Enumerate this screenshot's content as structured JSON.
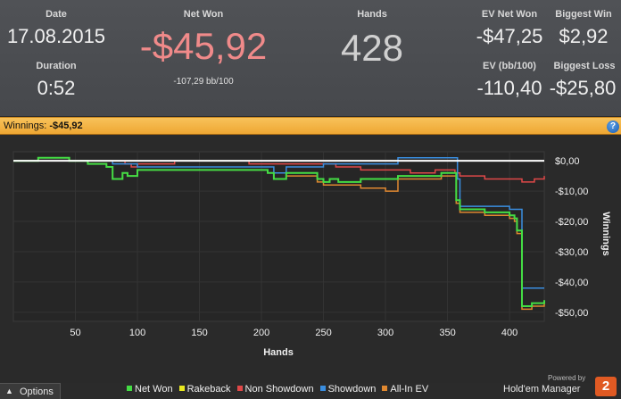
{
  "stats": {
    "date": {
      "label": "Date",
      "value": "17.08.2015"
    },
    "duration": {
      "label": "Duration",
      "value": "0:52"
    },
    "net_won": {
      "label": "Net Won",
      "value": "-$45,92",
      "sub": "-107,29 bb/100"
    },
    "hands": {
      "label": "Hands",
      "value": "428"
    },
    "ev_net_won": {
      "label": "EV Net Won",
      "value": "-$47,25"
    },
    "ev_bb100": {
      "label": "EV (bb/100)",
      "value": "-110,40"
    },
    "biggest_win": {
      "label": "Biggest Win",
      "value": "$2,92"
    },
    "biggest_loss": {
      "label": "Biggest Loss",
      "value": "-$25,80"
    }
  },
  "titlebar": {
    "label": "Winnings:",
    "value": "-$45,92",
    "help_icon": "?"
  },
  "colors": {
    "net_won_value": "#f08a8a",
    "accent_bar": "#f0ab3a"
  },
  "chart_data": {
    "type": "line",
    "xlabel": "Hands",
    "ylabel": "Winnings",
    "xlim": [
      0,
      428
    ],
    "ylim": [
      -53,
      3
    ],
    "x_ticks": [
      50,
      100,
      150,
      200,
      250,
      300,
      350,
      400
    ],
    "x_tick_labels": [
      "50",
      "100",
      "150",
      "200",
      "250",
      "300",
      "350",
      "400"
    ],
    "y_ticks": [
      0,
      -10,
      -20,
      -30,
      -40,
      -50
    ],
    "y_tick_labels": [
      "$0,00",
      "-$10,00",
      "-$20,00",
      "-$30,00",
      "-$40,00",
      "-$50,00"
    ],
    "zero_line": true,
    "legend_position": "bottom",
    "series": [
      {
        "name": "Net Won",
        "color": "#44dd44",
        "points": [
          [
            0,
            0
          ],
          [
            20,
            1
          ],
          [
            45,
            0
          ],
          [
            60,
            -1
          ],
          [
            75,
            -2
          ],
          [
            80,
            -6
          ],
          [
            88,
            -4
          ],
          [
            92,
            -5
          ],
          [
            100,
            -3
          ],
          [
            130,
            -3
          ],
          [
            150,
            -3
          ],
          [
            200,
            -3
          ],
          [
            205,
            -4
          ],
          [
            210,
            -6
          ],
          [
            220,
            -4
          ],
          [
            240,
            -4
          ],
          [
            245,
            -6
          ],
          [
            250,
            -7
          ],
          [
            255,
            -6
          ],
          [
            260,
            -6
          ],
          [
            262,
            -7
          ],
          [
            280,
            -6
          ],
          [
            300,
            -6
          ],
          [
            310,
            -5
          ],
          [
            330,
            -5
          ],
          [
            345,
            -4
          ],
          [
            350,
            -4
          ],
          [
            355,
            -4
          ],
          [
            357,
            -13
          ],
          [
            360,
            -16
          ],
          [
            380,
            -17
          ],
          [
            395,
            -17
          ],
          [
            400,
            -18
          ],
          [
            404,
            -19
          ],
          [
            406,
            -23
          ],
          [
            410,
            -48
          ],
          [
            415,
            -48
          ],
          [
            418,
            -47
          ],
          [
            428,
            -46
          ]
        ]
      },
      {
        "name": "Rakeback",
        "color": "#e8e820",
        "points": [
          [
            0,
            0
          ],
          [
            428,
            0
          ]
        ]
      },
      {
        "name": "Non Showdown",
        "color": "#e04848",
        "points": [
          [
            0,
            0
          ],
          [
            30,
            0
          ],
          [
            60,
            0
          ],
          [
            90,
            -1
          ],
          [
            95,
            -2
          ],
          [
            100,
            -1
          ],
          [
            130,
            0
          ],
          [
            150,
            0
          ],
          [
            190,
            -1
          ],
          [
            220,
            -1
          ],
          [
            240,
            -1
          ],
          [
            260,
            -2
          ],
          [
            280,
            -3
          ],
          [
            300,
            -3
          ],
          [
            320,
            -4
          ],
          [
            340,
            -3
          ],
          [
            356,
            -4
          ],
          [
            360,
            -5
          ],
          [
            380,
            -6
          ],
          [
            400,
            -6
          ],
          [
            410,
            -7
          ],
          [
            420,
            -6
          ],
          [
            428,
            -5
          ]
        ]
      },
      {
        "name": "Showdown",
        "color": "#3a8ee0",
        "points": [
          [
            0,
            0
          ],
          [
            60,
            0
          ],
          [
            80,
            -1
          ],
          [
            100,
            -2
          ],
          [
            150,
            -2
          ],
          [
            200,
            -2
          ],
          [
            210,
            -4
          ],
          [
            220,
            -2
          ],
          [
            240,
            -2
          ],
          [
            250,
            -1
          ],
          [
            300,
            -1
          ],
          [
            310,
            1
          ],
          [
            330,
            1
          ],
          [
            350,
            1
          ],
          [
            356,
            1
          ],
          [
            358,
            -6
          ],
          [
            360,
            -15
          ],
          [
            380,
            -15
          ],
          [
            395,
            -15
          ],
          [
            400,
            -16
          ],
          [
            405,
            -16
          ],
          [
            410,
            -42
          ],
          [
            415,
            -42
          ],
          [
            428,
            -42
          ]
        ]
      },
      {
        "name": "All-In EV",
        "color": "#e08830",
        "points": [
          [
            0,
            0
          ],
          [
            20,
            1
          ],
          [
            45,
            0
          ],
          [
            60,
            -1
          ],
          [
            75,
            -2
          ],
          [
            80,
            -6
          ],
          [
            88,
            -4
          ],
          [
            92,
            -5
          ],
          [
            100,
            -3
          ],
          [
            150,
            -3
          ],
          [
            200,
            -3
          ],
          [
            205,
            -4
          ],
          [
            210,
            -6
          ],
          [
            220,
            -5
          ],
          [
            240,
            -5
          ],
          [
            245,
            -7
          ],
          [
            250,
            -8
          ],
          [
            260,
            -8
          ],
          [
            280,
            -9
          ],
          [
            300,
            -10
          ],
          [
            310,
            -6
          ],
          [
            330,
            -6
          ],
          [
            345,
            -5
          ],
          [
            355,
            -5
          ],
          [
            357,
            -14
          ],
          [
            360,
            -17
          ],
          [
            380,
            -18
          ],
          [
            395,
            -18
          ],
          [
            400,
            -19
          ],
          [
            404,
            -20
          ],
          [
            406,
            -24
          ],
          [
            410,
            -49
          ],
          [
            415,
            -49
          ],
          [
            418,
            -48
          ],
          [
            428,
            -47
          ]
        ]
      }
    ]
  },
  "footer": {
    "options_label": "Options",
    "legend": [
      {
        "label": "Net Won",
        "color": "#44dd44"
      },
      {
        "label": "Rakeback",
        "color": "#e8e820"
      },
      {
        "label": "Non Showdown",
        "color": "#e04848"
      },
      {
        "label": "Showdown",
        "color": "#3a8ee0"
      },
      {
        "label": "All-In EV",
        "color": "#e08830"
      }
    ],
    "powered_by": "Powered by",
    "brand": "Hold'em Manager",
    "brand_badge": "2"
  }
}
